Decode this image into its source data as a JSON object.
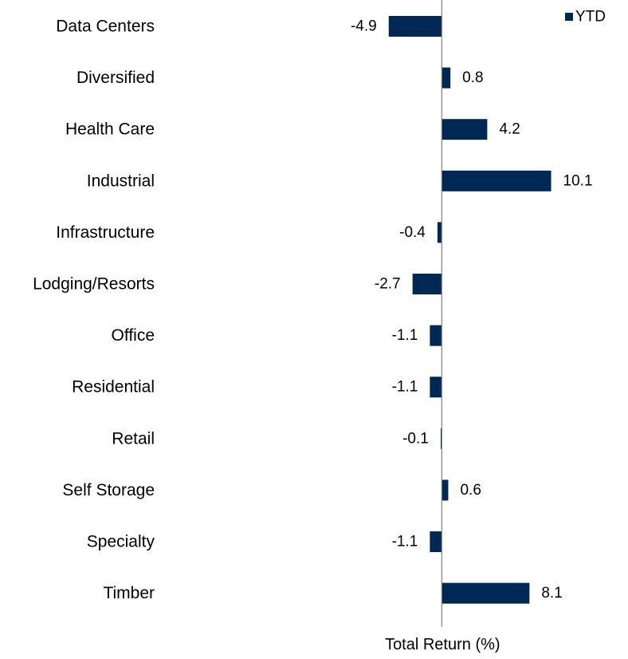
{
  "chart_data": {
    "type": "bar",
    "orientation": "horizontal",
    "categories": [
      "Data Centers",
      "Diversified",
      "Health Care",
      "Industrial",
      "Infrastructure",
      "Lodging/Resorts",
      "Office",
      "Residential",
      "Retail",
      "Self Storage",
      "Specialty",
      "Timber"
    ],
    "series": [
      {
        "name": "YTD",
        "values": [
          -4.9,
          0.8,
          4.2,
          10.1,
          -0.4,
          -2.7,
          -1.1,
          -1.1,
          -0.1,
          0.6,
          -1.1,
          8.1
        ],
        "labels": [
          "-4.9",
          "0.8",
          "4.2",
          "10.1",
          "-0.4",
          "-2.7",
          "-1.1",
          "-1.1",
          "-0.1",
          "0.6",
          "-1.1",
          "8.1"
        ]
      }
    ],
    "title": "",
    "xlabel": "Total Return (%)",
    "ylabel": "",
    "xlim": [
      -40.8,
      17.2
    ],
    "grid": false,
    "legend_position": "top-right",
    "bar_color": "#002855",
    "axis_color": "#808080"
  }
}
